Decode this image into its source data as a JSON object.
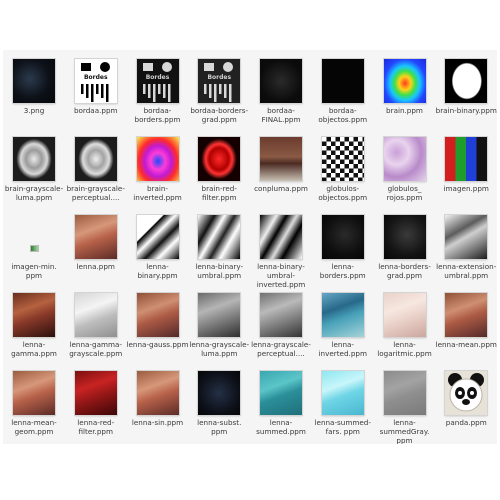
{
  "files": [
    {
      "name": "3.png",
      "thumb": "dark",
      "fill": "radial-gradient(circle at 40% 45%, #2b3a4d 0%, #0d1118 55%, #05070a 100%)"
    },
    {
      "name": "bordaa.ppm",
      "thumb": "bordes-white",
      "fill": "#ffffff"
    },
    {
      "name": "bordaa-borders.ppm",
      "thumb": "bordes-black",
      "fill": "#111111"
    },
    {
      "name": "bordaa-borders-grad.ppm",
      "thumb": "bordes-black-gray",
      "fill": "#161616"
    },
    {
      "name": "bordaa-FINAL.ppm",
      "thumb": "dark",
      "fill": "radial-gradient(circle at 50% 50%, #2a2a2a 0%, #0b0b0b 70%)"
    },
    {
      "name": "bordaa-objectos.ppm",
      "thumb": "solid",
      "fill": "#050505"
    },
    {
      "name": "brain.ppm",
      "thumb": "solid",
      "fill": "radial-gradient(ellipse at 50% 55%, #ff3b1f 0%, #ffd21a 20%, #3ee04a 35%, #19c6ff 50%, #2446ff 70%, #1a2bd8 100%)"
    },
    {
      "name": "brain-binary.ppm",
      "thumb": "solid",
      "fill": "radial-gradient(ellipse 36% 42% at 52% 50%, #ffffff 0%, #ffffff 92%, #000000 100%)"
    },
    {
      "name": "brain-grayscale-luma.ppm",
      "thumb": "solid",
      "fill": "radial-gradient(ellipse 42% 46% at 50% 50%, #e9e9e9 0%, #9b9b9b 45%, #d8d8d8 75%, #1c1c1c 100%)"
    },
    {
      "name": "brain-grayscale-perceptual....",
      "thumb": "solid",
      "fill": "radial-gradient(ellipse 42% 46% at 50% 50%, #efefef 0%, #a3a3a3 45%, #dddddd 75%, #1c1c1c 100%)"
    },
    {
      "name": "brain-inverted.ppm",
      "thumb": "solid",
      "fill": "radial-gradient(ellipse at 50% 55%, #1d4bff 0%, #ff3cd8 25%, #c01bd3 45%, #ff2a2a 65%, #f7f24b 100%)"
    },
    {
      "name": "brain-red-filter.ppm",
      "thumb": "solid",
      "fill": "radial-gradient(ellipse 42% 46% at 50% 50%, #ff2a2a 0%, #b00000 55%, #ff3333 75%, #140000 100%)"
    },
    {
      "name": "conpluma.ppm",
      "thumb": "solid",
      "fill": "linear-gradient(180deg, #6b3b2e 0%, #8a5a45 45%, #4b2a22 60%, #c9c1b3 100%)"
    },
    {
      "name": "globulos-objectos.ppm",
      "thumb": "solid",
      "fill": "repeating-conic-gradient(#111111 0% 25%, #ffffff 0% 50%) 0 0 / 9px 9px"
    },
    {
      "name": "globulos_ rojos.ppm",
      "thumb": "solid",
      "fill": "radial-gradient(circle at 30% 35%, #c9a0d8 0%, #e9d3ee 30%, #b88ac9 60%, #e6d3ec 100%)"
    },
    {
      "name": "imagen.ppm",
      "thumb": "solid",
      "fill": "linear-gradient(90deg, #d21e1e 0%, #d21e1e 25%, #1e9c2c 25%, #1e9c2c 50%, #1f3fd6 50%, #1f3fd6 75%, #111111 75%, #111111 100%)"
    },
    {
      "name": "imagen-min. ppm",
      "thumb": "tiny",
      "fill": "transparent"
    },
    {
      "name": "lenna.ppm",
      "thumb": "solid",
      "fill": "linear-gradient(160deg, #9a5c3f 0%, #d7987a 35%, #b8624a 55%, #5b2b27 100%)"
    },
    {
      "name": "lenna-binary.ppm",
      "thumb": "solid",
      "fill": "linear-gradient(135deg, #ffffff 0%, #ffffff 30%, #000000 32%, #ffffff 45%, #111111 60%, #ffffff 75%, #000000 100%)"
    },
    {
      "name": "lenna-binary-umbral.ppm",
      "thumb": "solid",
      "fill": "linear-gradient(120deg, #ffffff 0%, #111111 25%, #ffffff 40%, #222222 55%, #ffffff 70%, #000000 100%)"
    },
    {
      "name": "lenna-binary-umbral-inverted.ppm",
      "thumb": "solid",
      "fill": "linear-gradient(120deg, #000000 0%, #eeeeee 25%, #000000 40%, #dddddd 55%, #000000 70%, #ffffff 100%)"
    },
    {
      "name": "lenna-borders.ppm",
      "thumb": "solid",
      "fill": "radial-gradient(circle at 55% 45%, #2a2a2a 0%, #0e0e0e 60%, #050505 100%)"
    },
    {
      "name": "lenna-borders-grad.ppm",
      "thumb": "solid",
      "fill": "radial-gradient(circle at 55% 45%, #3a3a3a 0%, #141414 60%, #070707 100%)"
    },
    {
      "name": "lenna-extension-umbral.ppm",
      "thumb": "solid",
      "fill": "linear-gradient(150deg, #f2f2f2 0%, #5c5c5c 35%, #cfcfcf 50%, #1b1b1b 100%)"
    },
    {
      "name": "lenna-gamma.ppm",
      "thumb": "solid",
      "fill": "linear-gradient(160deg, #6a2e1e 0%, #b5623f 35%, #8a3a29 55%, #2a0f0d 100%)"
    },
    {
      "name": "lenna-gamma-grayscale.ppm",
      "thumb": "solid",
      "fill": "linear-gradient(160deg, #d6d6d6 0%, #f4f4f4 35%, #bdbdbd 60%, #8f8f8f 100%)"
    },
    {
      "name": "lenna-gauss.ppm",
      "thumb": "solid",
      "fill": "linear-gradient(160deg, #8e5038 0%, #cf8f72 35%, #ad5b45 55%, #54292a 100%)"
    },
    {
      "name": "lenna-grayscale-luma.ppm",
      "thumb": "solid",
      "fill": "linear-gradient(160deg, #6a6a6a 0%, #b5b5b5 35%, #8a8a8a 55%, #2e2e2e 100%)"
    },
    {
      "name": "lenna-grayscale-perceptual....",
      "thumb": "solid",
      "fill": "linear-gradient(160deg, #707070 0%, #bababa 35%, #909090 55%, #333333 100%)"
    },
    {
      "name": "lenna-inverted.ppm",
      "thumb": "solid",
      "fill": "linear-gradient(160deg, #66a7c6 0%, #28698a 35%, #47a0b8 55%, #a4d4d8 100%)"
    },
    {
      "name": "lenna-logaritmic.ppm",
      "thumb": "solid",
      "fill": "linear-gradient(160deg, #e9d2c8 0%, #f6e7e0 35%, #ecd4cb 55%, #caa69f 100%)"
    },
    {
      "name": "lenna-mean.ppm",
      "thumb": "solid",
      "fill": "linear-gradient(160deg, #8e5038 0%, #cf8f72 35%, #ad5b45 55%, #54292a 100%)"
    },
    {
      "name": "lenna-mean-geom.ppm",
      "thumb": "solid",
      "fill": "linear-gradient(160deg, #9a5c3f 0%, #d7987a 35%, #b8624a 55%, #5b2b27 100%)"
    },
    {
      "name": "lenna-red-filter.ppm",
      "thumb": "solid",
      "fill": "linear-gradient(160deg, #7a1010 0%, #c92323 35%, #9b1818 55%, #3c0707 100%)"
    },
    {
      "name": "lenna-sin.ppm",
      "thumb": "solid",
      "fill": "linear-gradient(160deg, #9a5c3f 0%, #d7987a 35%, #b8624a 55%, #5b2b27 100%)"
    },
    {
      "name": "lenna-subst. ppm",
      "thumb": "solid",
      "fill": "radial-gradient(circle at 50% 50%, #243046 0%, #0d1018 65%, #050608 100%)"
    },
    {
      "name": "lenna-summed.ppm",
      "thumb": "solid",
      "fill": "linear-gradient(160deg, #3aa7b0 0%, #5bc5c8 35%, #2b8f9a 55%, #1f6f7a 100%)"
    },
    {
      "name": "lenna-summed-fars. ppm",
      "thumb": "solid",
      "fill": "linear-gradient(160deg, #8fe6f0 0%, #c8f6fa 35%, #6fd5e6 55%, #49b6cf 100%)"
    },
    {
      "name": "lenna-summedGray. ppm",
      "thumb": "solid",
      "fill": "linear-gradient(160deg, #8b8b8b 0%, #a3a3a3 35%, #8f8f8f 55%, #7a7a7a 100%)"
    },
    {
      "name": "panda.ppm",
      "thumb": "panda",
      "fill": "#e7e2d8"
    }
  ],
  "thumb_texts": {
    "bordes": "Bordes"
  }
}
